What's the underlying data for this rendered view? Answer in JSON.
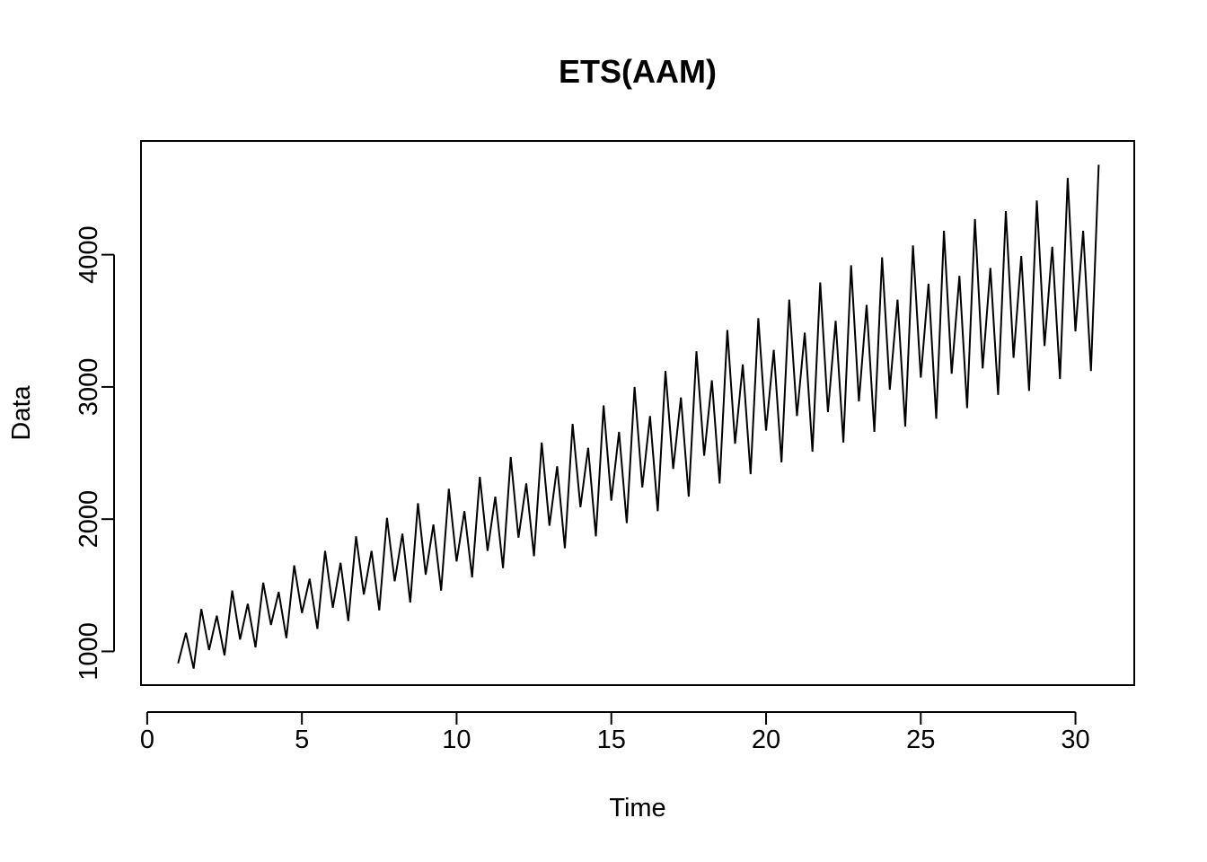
{
  "chart_data": {
    "type": "line",
    "title": "ETS(AAM)",
    "xlabel": "Time",
    "ylabel": "Data",
    "xlim": [
      -0.2,
      31.9
    ],
    "ylim": [
      745,
      4860
    ],
    "xticks": [
      0,
      5,
      10,
      15,
      20,
      25,
      30
    ],
    "yticks": [
      1000,
      2000,
      3000,
      4000
    ],
    "xtick_labels": [
      "0",
      "5",
      "10",
      "15",
      "20",
      "25",
      "30"
    ],
    "ytick_labels": [
      "1000",
      "2000",
      "3000",
      "4000"
    ],
    "grid": false,
    "legend": "none",
    "frequency": 4,
    "series": [
      {
        "color": "#000000",
        "x": [
          1.0,
          1.25,
          1.5,
          1.75,
          2.0,
          2.25,
          2.5,
          2.75,
          3.0,
          3.25,
          3.5,
          3.75,
          4.0,
          4.25,
          4.5,
          4.75,
          5.0,
          5.25,
          5.5,
          5.75,
          6.0,
          6.25,
          6.5,
          6.75,
          7.0,
          7.25,
          7.5,
          7.75,
          8.0,
          8.25,
          8.5,
          8.75,
          9.0,
          9.25,
          9.5,
          9.75,
          10.0,
          10.25,
          10.5,
          10.75,
          11.0,
          11.25,
          11.5,
          11.75,
          12.0,
          12.25,
          12.5,
          12.75,
          13.0,
          13.25,
          13.5,
          13.75,
          14.0,
          14.25,
          14.5,
          14.75,
          15.0,
          15.25,
          15.5,
          15.75,
          16.0,
          16.25,
          16.5,
          16.75,
          17.0,
          17.25,
          17.5,
          17.75,
          18.0,
          18.25,
          18.5,
          18.75,
          19.0,
          19.25,
          19.5,
          19.75,
          20.0,
          20.25,
          20.5,
          20.75,
          21.0,
          21.25,
          21.5,
          21.75,
          22.0,
          22.25,
          22.5,
          22.75,
          23.0,
          23.25,
          23.5,
          23.75,
          24.0,
          24.25,
          24.5,
          24.75,
          25.0,
          25.25,
          25.5,
          25.75,
          26.0,
          26.25,
          26.5,
          26.75,
          27.0,
          27.25,
          27.5,
          27.75,
          28.0,
          28.25,
          28.5,
          28.75,
          29.0,
          29.25,
          29.5,
          29.75,
          30.0,
          30.25,
          30.5,
          30.75
        ],
        "y": [
          910,
          1140,
          870,
          1320,
          1010,
          1270,
          970,
          1460,
          1090,
          1360,
          1030,
          1520,
          1200,
          1450,
          1100,
          1650,
          1290,
          1550,
          1170,
          1760,
          1330,
          1670,
          1230,
          1870,
          1430,
          1760,
          1310,
          2010,
          1530,
          1890,
          1370,
          2120,
          1580,
          1960,
          1460,
          2230,
          1680,
          2060,
          1560,
          2320,
          1760,
          2170,
          1630,
          2470,
          1860,
          2270,
          1720,
          2580,
          1950,
          2400,
          1780,
          2720,
          2090,
          2540,
          1870,
          2860,
          2140,
          2660,
          1970,
          3000,
          2240,
          2780,
          2060,
          3120,
          2380,
          2920,
          2170,
          3270,
          2480,
          3050,
          2270,
          3430,
          2570,
          3170,
          2340,
          3520,
          2670,
          3280,
          2430,
          3660,
          2780,
          3410,
          2510,
          3790,
          2810,
          3500,
          2580,
          3920,
          2890,
          3620,
          2660,
          3980,
          2980,
          3660,
          2700,
          4070,
          3070,
          3780,
          2760,
          4180,
          3100,
          3840,
          2840,
          4270,
          3140,
          3900,
          2940,
          4330,
          3220,
          3990,
          2970,
          4410,
          3310,
          4060,
          3060,
          4580,
          3420,
          4180,
          3120,
          4680
        ]
      }
    ]
  }
}
